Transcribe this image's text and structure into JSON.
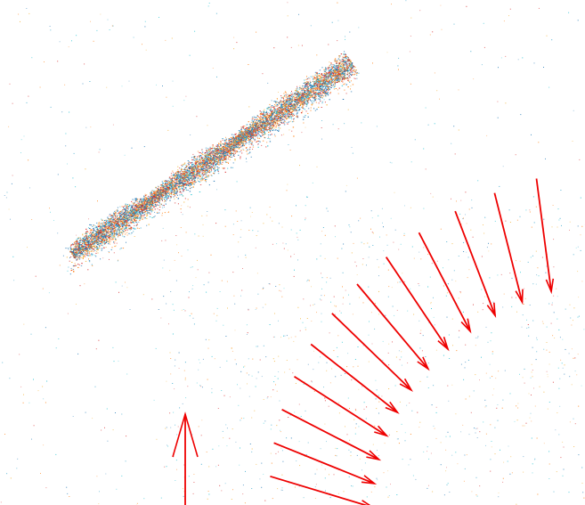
{
  "scene": {
    "background": "#ffffff",
    "point_colors": [
      "#1f77b4",
      "#ff7f0e",
      "#d62728",
      "#2aa0c8",
      "#f2b134",
      "#17becf"
    ],
    "camera_color": "#ee0000",
    "camera_count": 13,
    "focus_camera_index": 0
  }
}
